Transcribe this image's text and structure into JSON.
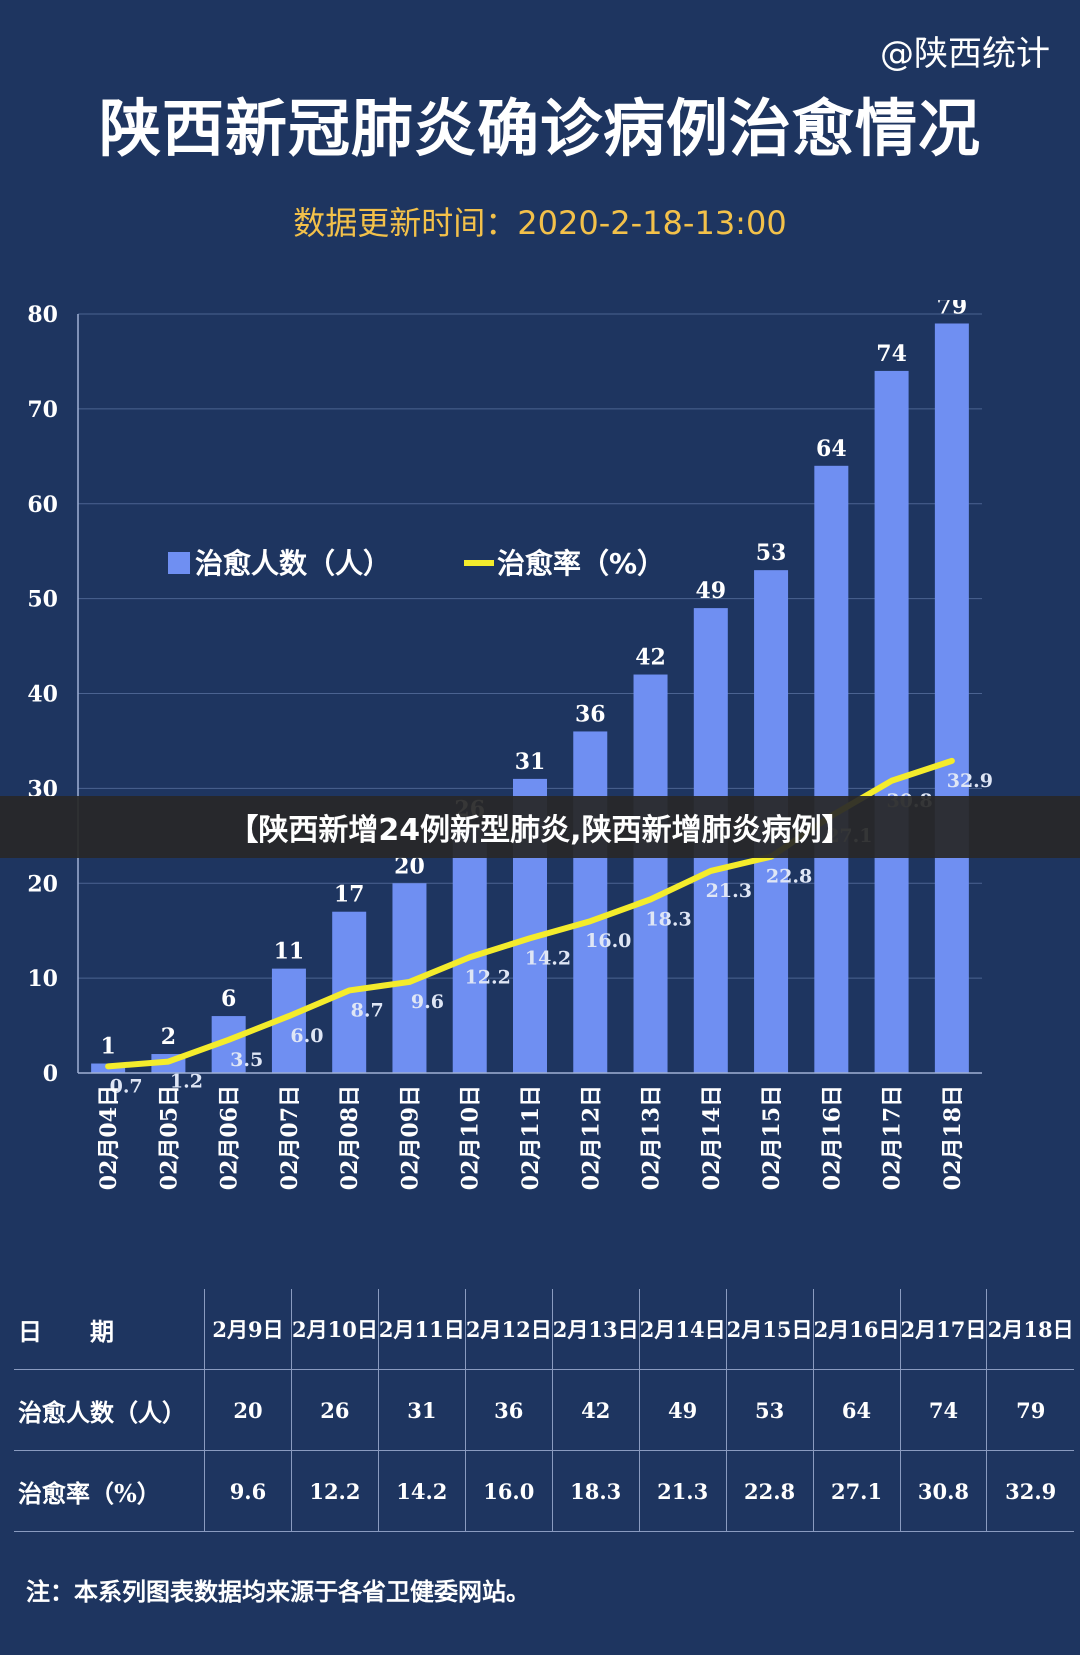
{
  "header": {
    "source_mark": "@陕西统计",
    "title": "陕西新冠肺炎确诊病例治愈情况",
    "update_time": "数据更新时间：2020-2-18-13:00"
  },
  "banner": {
    "text": "【陕西新增24例新型肺炎,陕西新增肺炎病例】"
  },
  "chart_data": {
    "type": "bar",
    "title": "陕西新冠肺炎确诊病例治愈情况",
    "categories": [
      "02月04日",
      "02月05日",
      "02月06日",
      "02月07日",
      "02月08日",
      "02月09日",
      "02月10日",
      "02月11日",
      "02月12日",
      "02月13日",
      "02月14日",
      "02月15日",
      "02月16日",
      "02月17日",
      "02月18日"
    ],
    "series": [
      {
        "name": "治愈人数（人）",
        "type": "bar",
        "color": "#6f8ff2",
        "values": [
          1,
          2,
          6,
          11,
          17,
          20,
          26,
          31,
          36,
          42,
          49,
          53,
          64,
          74,
          79
        ]
      },
      {
        "name": "治愈率（%）",
        "type": "line",
        "color": "#f4ec2c",
        "values": [
          0.7,
          1.2,
          3.5,
          6.0,
          8.7,
          9.6,
          12.2,
          14.2,
          16.0,
          18.3,
          21.3,
          22.8,
          27.1,
          30.8,
          32.9
        ]
      }
    ],
    "yticks": [
      "0",
      "10",
      "20",
      "30",
      "40",
      "50",
      "60",
      "70",
      "80"
    ],
    "ylim": [
      0,
      80
    ],
    "grid": true,
    "legend_position": "top-left"
  },
  "table": {
    "rows": [
      {
        "label": "日　　期",
        "cells": [
          "2月9日",
          "2月10日",
          "2月11日",
          "2月12日",
          "2月13日",
          "2月14日",
          "2月15日",
          "2月16日",
          "2月17日",
          "2月18日"
        ]
      },
      {
        "label": "治愈人数（人）",
        "cells": [
          "20",
          "26",
          "31",
          "36",
          "42",
          "49",
          "53",
          "64",
          "74",
          "79"
        ]
      },
      {
        "label": "治愈率（%）",
        "cells": [
          "9.6",
          "12.2",
          "14.2",
          "16.0",
          "18.3",
          "21.3",
          "22.8",
          "27.1",
          "30.8",
          "32.9"
        ]
      }
    ]
  },
  "footer": {
    "note": "注：本系列图表数据均来源于各省卫健委网站。"
  }
}
